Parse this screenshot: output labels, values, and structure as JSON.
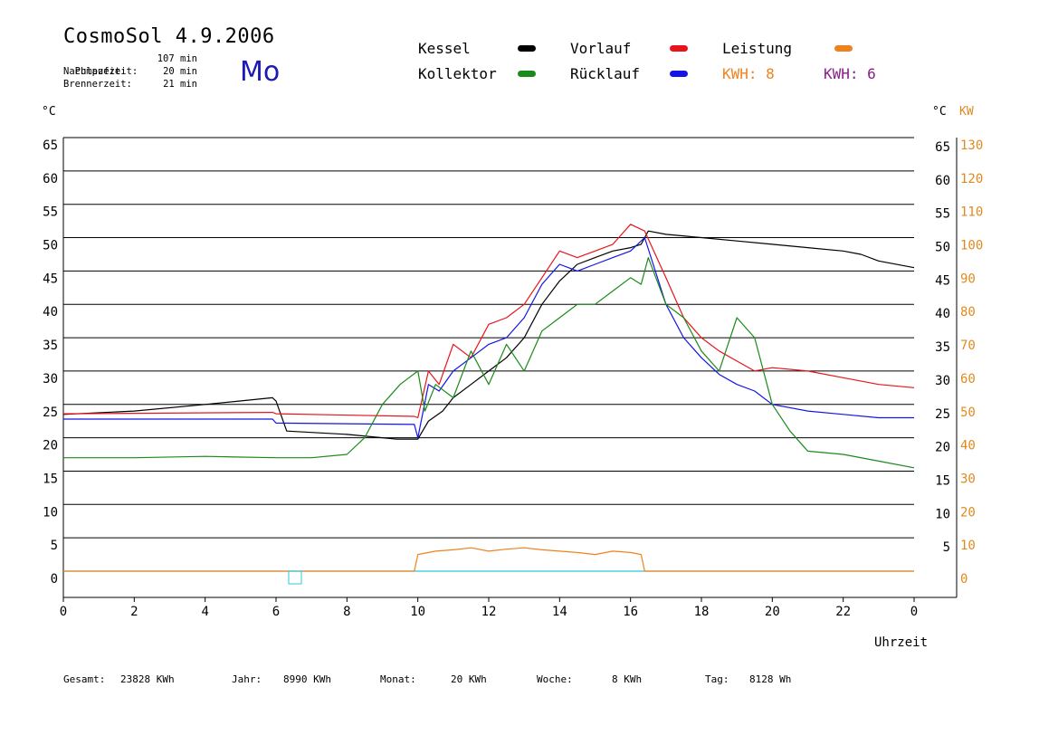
{
  "header": {
    "title": "CosmoSol 4.9.2006",
    "day": "Mo",
    "info": [
      {
        "label": "Pumpzeit:",
        "value": "107 min"
      },
      {
        "label": "Nachlaufzeit:",
        "value": "20 min"
      },
      {
        "label": "Brennerzeit:",
        "value": "21 min"
      }
    ]
  },
  "legend": {
    "items": [
      {
        "label": "Kessel",
        "color": "#000000"
      },
      {
        "label": "Vorlauf",
        "color": "#e8141c"
      },
      {
        "label": "Leistung",
        "color": "#f0821e"
      },
      {
        "label": "Kollektor",
        "color": "#1a8a1a"
      },
      {
        "label": "Rücklauf",
        "color": "#1414e6"
      }
    ],
    "kwh1": {
      "label": "KWH: 8",
      "color": "#f0821e"
    },
    "kwh2": {
      "label": "KWH: 6",
      "color": "#8a1e8a"
    }
  },
  "axes": {
    "left_unit": "°C",
    "right_unit": "°C",
    "right_unit2": "KW",
    "xlabel": "Uhrzeit"
  },
  "footer": {
    "gesamt": {
      "label": "Gesamt:",
      "value": "23828 KWh"
    },
    "jahr": {
      "label": "Jahr:",
      "value": "8990 KWh"
    },
    "monat": {
      "label": "Monat:",
      "value": "20 KWh"
    },
    "woche": {
      "label": "Woche:",
      "value": "8 KWh"
    },
    "tag": {
      "label": "Tag:",
      "value": "8128 Wh"
    }
  },
  "chart_data": {
    "type": "line",
    "xlabel": "Uhrzeit",
    "ylabel": "°C",
    "ylabel_right": "KW",
    "xlim": [
      0,
      24
    ],
    "ylim": [
      0,
      65
    ],
    "ylim_right": [
      0,
      130
    ],
    "x_ticks": [
      "0",
      "2",
      "4",
      "6",
      "8",
      "10",
      "12",
      "14",
      "16",
      "18",
      "20",
      "22",
      "0"
    ],
    "y_ticks": [
      0,
      5,
      10,
      15,
      20,
      25,
      30,
      35,
      40,
      45,
      50,
      55,
      60,
      65
    ],
    "y_ticks_right_c": [
      5,
      10,
      15,
      20,
      25,
      30,
      35,
      40,
      45,
      50,
      55,
      60,
      65
    ],
    "y_ticks_right_kw": [
      0,
      10,
      20,
      30,
      40,
      50,
      60,
      70,
      80,
      90,
      100,
      110,
      120,
      130
    ],
    "grid": true,
    "series": [
      {
        "name": "Kessel",
        "color": "#000000",
        "x": [
          0,
          2,
          4,
          5.9,
          6.0,
          6.3,
          8,
          9.4,
          10,
          10.3,
          10.7,
          11,
          11.5,
          12,
          12.5,
          13,
          13.5,
          14,
          14.5,
          15,
          15.5,
          16,
          16.3,
          16.5,
          17,
          18,
          19,
          20,
          21,
          22,
          22.5,
          23,
          24
        ],
        "y": [
          23.5,
          24.0,
          25.0,
          26.0,
          25.5,
          21.0,
          20.5,
          19.8,
          19.8,
          22.5,
          24.0,
          26.0,
          28.0,
          30.0,
          32.0,
          35.0,
          40.0,
          43.5,
          46.0,
          47.0,
          48.0,
          48.5,
          49.0,
          51.0,
          50.5,
          50.0,
          49.5,
          49.0,
          48.5,
          48.0,
          47.5,
          46.5,
          45.5
        ]
      },
      {
        "name": "Vorlauf",
        "color": "#e8141c",
        "x": [
          0,
          5.9,
          6,
          9.9,
          10,
          10.3,
          10.6,
          11,
          11.5,
          12,
          12.5,
          13,
          13.5,
          14,
          14.5,
          15,
          15.5,
          16,
          16.4,
          17,
          17.5,
          18,
          18.5,
          19,
          19.5,
          20,
          21,
          22,
          23,
          24
        ],
        "y": [
          23.6,
          23.8,
          23.6,
          23.2,
          23.0,
          30,
          28,
          34,
          32,
          37,
          38,
          40,
          44,
          48,
          47,
          48,
          49,
          52,
          51,
          44,
          38,
          35,
          33,
          31.5,
          30,
          30.5,
          30,
          29,
          28,
          27.5
        ]
      },
      {
        "name": "Rücklauf",
        "color": "#1414e6",
        "x": [
          0,
          5.9,
          6,
          9.9,
          10,
          10.3,
          10.6,
          11,
          11.5,
          12,
          12.5,
          13,
          13.5,
          14,
          14.5,
          15,
          15.5,
          16,
          16.4,
          17,
          17.5,
          18,
          18.5,
          19,
          19.5,
          20,
          21,
          22,
          23,
          24
        ],
        "y": [
          22.8,
          22.8,
          22.2,
          22.0,
          20.0,
          28,
          27,
          30,
          32,
          34,
          35,
          38,
          43,
          46,
          45,
          46,
          47,
          48,
          50,
          40,
          35,
          32,
          29.5,
          28,
          27,
          25,
          24,
          23.5,
          23,
          23
        ]
      },
      {
        "name": "Kollektor",
        "color": "#1a8a1a",
        "x": [
          0,
          2,
          4,
          6,
          7,
          8,
          8.5,
          9,
          9.5,
          10,
          10.2,
          10.5,
          11,
          11.5,
          12,
          12.5,
          13,
          13.5,
          14,
          14.5,
          15,
          15.5,
          16,
          16.3,
          16.5,
          17,
          17.5,
          18,
          18.5,
          19,
          19.5,
          20,
          20.5,
          21,
          22,
          23,
          24
        ],
        "y": [
          17.0,
          17.0,
          17.2,
          17.0,
          17.0,
          17.5,
          20,
          25,
          28,
          30,
          24,
          28,
          26,
          33,
          28,
          34,
          30,
          36,
          38,
          40,
          40,
          42,
          44,
          43,
          47,
          40,
          38,
          33,
          30,
          38,
          35,
          25,
          21,
          18,
          17.5,
          16.5,
          15.5
        ]
      },
      {
        "name": "Leistung",
        "color": "#f0821e",
        "x": [
          0,
          9.9,
          10,
          10.5,
          11,
          11.5,
          12,
          12.5,
          13,
          13.5,
          14,
          14.5,
          15,
          15.5,
          16,
          16.3,
          16.4,
          24
        ],
        "y": [
          0,
          0,
          2.5,
          3.0,
          3.2,
          3.5,
          3.0,
          3.3,
          3.5,
          3.2,
          3.0,
          2.8,
          2.5,
          3.0,
          2.8,
          2.5,
          0,
          0
        ]
      }
    ]
  }
}
